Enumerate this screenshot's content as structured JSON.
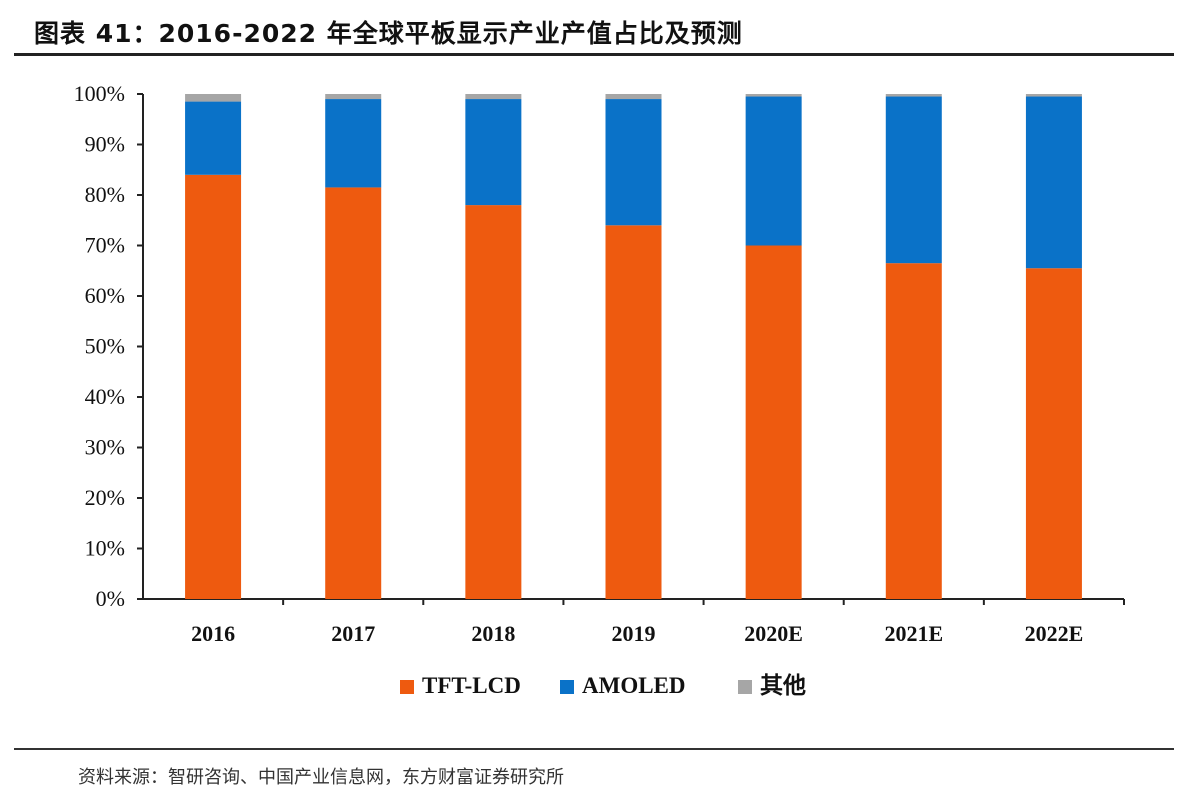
{
  "header": {
    "title": "图表 41：2016-2022 年全球平板显示产业产值占比及预测"
  },
  "footer": {
    "source": "资料来源：智研咨询、中国产业信息网，东方财富证券研究所"
  },
  "chart_data": {
    "type": "bar",
    "stacked": true,
    "title": "图表 41：2016-2022 年全球平板显示产业产值占比及预测",
    "xlabel": "",
    "ylabel": "",
    "categories": [
      "2016",
      "2017",
      "2018",
      "2019",
      "2020E",
      "2021E",
      "2022E"
    ],
    "series": [
      {
        "name": "TFT-LCD",
        "color": "#ee5a0f",
        "values": [
          84,
          81.5,
          78,
          74,
          70,
          66.5,
          65.5
        ]
      },
      {
        "name": "AMOLED",
        "color": "#0a72c8",
        "values": [
          14.5,
          17.5,
          21,
          25,
          29.5,
          33,
          34
        ]
      },
      {
        "name": "其他",
        "color": "#a6a6a6",
        "values": [
          1.5,
          1,
          1,
          1,
          0.5,
          0.5,
          0.5
        ]
      }
    ],
    "ylim": [
      0,
      100
    ],
    "yticks": [
      "0%",
      "10%",
      "20%",
      "30%",
      "40%",
      "50%",
      "60%",
      "70%",
      "80%",
      "90%",
      "100%"
    ],
    "grid": false,
    "legend_position": "bottom"
  }
}
